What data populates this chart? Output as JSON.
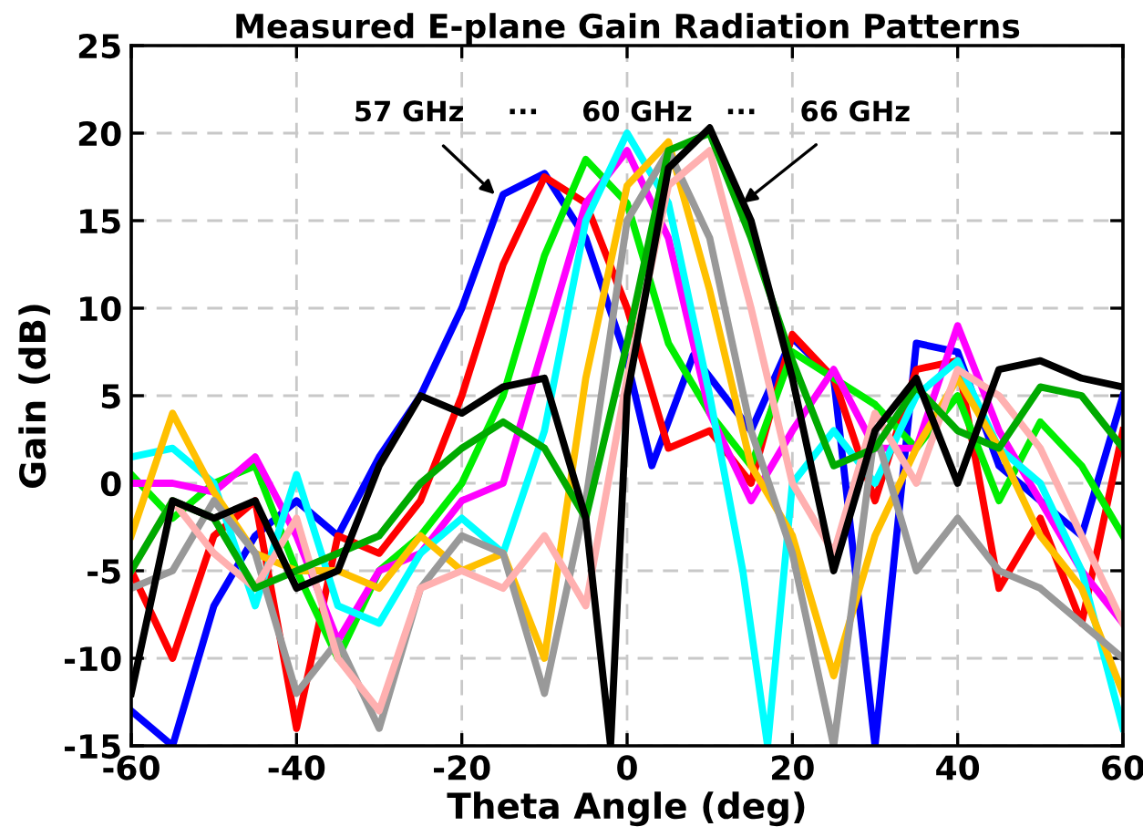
{
  "chart_data": {
    "type": "line",
    "title": "Measured E-plane Gain Radiation Patterns",
    "xlabel": "Theta Angle (deg)",
    "ylabel": "Gain (dB)",
    "xlim": [
      -60,
      60
    ],
    "ylim": [
      -15,
      25
    ],
    "xticks": [
      -60,
      -40,
      -20,
      0,
      20,
      40,
      60
    ],
    "yticks": [
      -15,
      -10,
      -5,
      0,
      5,
      10,
      15,
      20,
      25
    ],
    "grid": true,
    "legend": false,
    "marker": "none",
    "line_style": "solid",
    "annotations": [
      {
        "text": "57 GHz",
        "x": -16,
        "y": 16.5
      },
      "···",
      "60 GHz",
      "···",
      {
        "text": "66 GHz",
        "x": 14,
        "y": 16
      }
    ],
    "series": [
      {
        "color": "#0000ff",
        "x": [
          -60,
          -55,
          -50,
          -45,
          -40,
          -35,
          -30,
          -25,
          -20,
          -15,
          -10,
          -5,
          0,
          3,
          8,
          15,
          20,
          25,
          30,
          35,
          40,
          45,
          50,
          55,
          60
        ],
        "values": [
          -13,
          -15,
          -7,
          -3,
          -1,
          -3,
          1.5,
          5,
          10,
          16.5,
          17.7,
          14,
          7,
          1,
          7.3,
          3,
          8.3,
          6,
          -15,
          8,
          7.5,
          1,
          -1,
          -3,
          5
        ]
      },
      {
        "color": "#ff0000",
        "x": [
          -60,
          -55,
          -50,
          -45,
          -40,
          -35,
          -30,
          -25,
          -20,
          -15,
          -10,
          -5,
          0,
          5,
          10,
          15,
          20,
          25,
          30,
          35,
          40,
          45,
          50,
          55,
          60
        ],
        "values": [
          -5,
          -10,
          -3,
          -1,
          -14,
          -3,
          -4,
          -1,
          5,
          12.5,
          17.5,
          16,
          10,
          2,
          3,
          0,
          8.5,
          6,
          -1,
          6.5,
          7,
          -6,
          -2,
          -8,
          3
        ]
      },
      {
        "color": "#00ee00",
        "x": [
          -60,
          -55,
          -50,
          -45,
          -40,
          -35,
          -30,
          -25,
          -20,
          -15,
          -10,
          -5,
          0,
          5,
          10,
          15,
          20,
          25,
          30,
          35,
          40,
          45,
          50,
          55,
          60
        ],
        "values": [
          0.5,
          -2,
          0,
          1,
          -5,
          -10,
          -5,
          -3,
          0,
          5,
          13,
          18.5,
          16,
          8,
          4,
          1,
          7.5,
          6,
          4.5,
          2,
          5,
          -1,
          3.5,
          1,
          -3
        ]
      },
      {
        "color": "#ff00ff",
        "x": [
          -60,
          -55,
          -50,
          -45,
          -40,
          -35,
          -30,
          -25,
          -20,
          -15,
          -10,
          -5,
          0,
          5,
          10,
          15,
          20,
          25,
          30,
          35,
          40,
          45,
          50,
          55,
          60
        ],
        "values": [
          0,
          0,
          -0.5,
          1.5,
          -3,
          -9,
          -5,
          -4,
          -1,
          0,
          8,
          16,
          19,
          14,
          4,
          -1,
          3,
          6.5,
          2,
          2,
          9,
          3,
          -1,
          -5,
          -8
        ]
      },
      {
        "color": "#00ffff",
        "x": [
          -60,
          -55,
          -50,
          -45,
          -40,
          -35,
          -30,
          -25,
          -20,
          -15,
          -10,
          -5,
          0,
          5,
          10,
          14,
          17,
          20,
          25,
          30,
          35,
          40,
          45,
          50,
          55,
          60
        ],
        "values": [
          1.5,
          2,
          0,
          -7,
          0.5,
          -7,
          -8,
          -4,
          -2,
          -4,
          3,
          15,
          20,
          16,
          5,
          -5,
          -15,
          0,
          3,
          0,
          5,
          7,
          2,
          0,
          -5,
          -14
        ]
      },
      {
        "color": "#ffc000",
        "x": [
          -60,
          -55,
          -50,
          -45,
          -40,
          -35,
          -30,
          -25,
          -20,
          -15,
          -10,
          -5,
          0,
          5,
          10,
          15,
          20,
          25,
          30,
          35,
          40,
          45,
          50,
          55,
          60
        ],
        "values": [
          -3,
          4,
          -0.5,
          -4,
          -5,
          -5,
          -6,
          -3,
          -5,
          -4,
          -10,
          6,
          17,
          19.5,
          11,
          1,
          -3,
          -11,
          -3,
          2,
          6,
          2,
          -3,
          -6,
          -12
        ]
      },
      {
        "color": "#999999",
        "x": [
          -60,
          -55,
          -50,
          -45,
          -40,
          -35,
          -30,
          -25,
          -20,
          -15,
          -10,
          -5,
          0,
          5,
          10,
          15,
          20,
          25,
          30,
          35,
          40,
          45,
          50,
          55,
          60
        ],
        "values": [
          -6,
          -5,
          -1,
          -4,
          -12,
          -9,
          -14,
          -6,
          -3,
          -4,
          -12,
          -1,
          15,
          19,
          14,
          3,
          -4,
          -15,
          3,
          -5,
          -2,
          -5,
          -6,
          -8,
          -10
        ]
      },
      {
        "color": "#ffb0b0",
        "x": [
          -60,
          -55,
          -50,
          -45,
          -40,
          -35,
          -30,
          -25,
          -20,
          -15,
          -10,
          -5,
          0,
          5,
          10,
          15,
          20,
          25,
          30,
          35,
          40,
          45,
          50,
          55,
          60
        ],
        "values": [
          -5,
          -1,
          -4,
          -6,
          -2,
          -10,
          -13,
          -6,
          -5,
          -6,
          -3,
          -7,
          6,
          17,
          19,
          10,
          0,
          -4,
          4,
          0,
          6.5,
          5,
          2,
          -3,
          -8
        ]
      },
      {
        "color": "#00aa00",
        "x": [
          -60,
          -55,
          -50,
          -45,
          -40,
          -35,
          -30,
          -25,
          -20,
          -15,
          -10,
          -5,
          0,
          5,
          10,
          15,
          20,
          25,
          30,
          35,
          40,
          45,
          50,
          55,
          60
        ],
        "values": [
          -5,
          -1,
          -2,
          -6,
          -5,
          -4,
          -3,
          0,
          2,
          3.5,
          2,
          -2,
          8,
          19,
          20,
          14,
          7,
          1,
          2,
          5.5,
          3,
          2,
          5.5,
          5,
          2
        ]
      },
      {
        "color": "#000000",
        "x": [
          -60,
          -55,
          -50,
          -45,
          -40,
          -35,
          -30,
          -25,
          -20,
          -15,
          -10,
          -5,
          -2,
          0,
          5,
          10,
          15,
          20,
          25,
          30,
          35,
          40,
          45,
          50,
          55,
          60
        ],
        "values": [
          -12,
          -1,
          -2,
          -1,
          -6,
          -5,
          1,
          5,
          4,
          5.5,
          6,
          -2,
          -15,
          5,
          18,
          20.3,
          15,
          6,
          -5,
          3,
          6,
          0,
          6.5,
          7,
          6,
          5.5
        ]
      }
    ]
  }
}
